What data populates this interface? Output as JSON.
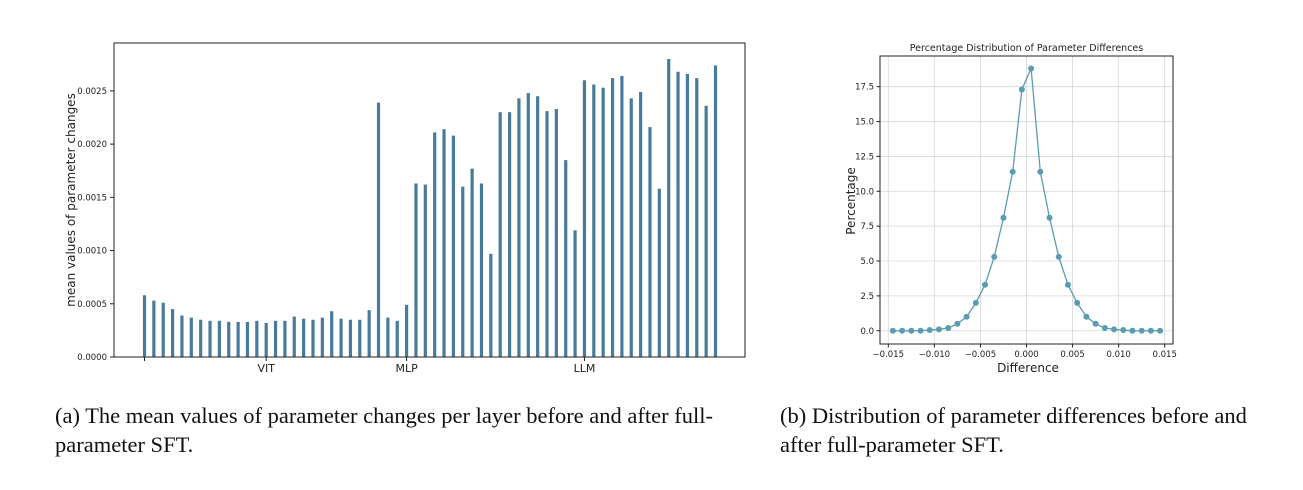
{
  "captions": {
    "a": "(a) The mean values of parameter changes per layer before and after full-parameter SFT.",
    "b": "(b) Distribution of parameter differences before and after full-parameter SFT."
  },
  "colors": {
    "bar": "#4a7a9b",
    "line": "#5b9cb0"
  },
  "chart_data": [
    {
      "type": "bar",
      "title": "",
      "xlabel": "",
      "ylabel": "mean values of parameter changes",
      "ylim": [
        0,
        0.00295
      ],
      "yticks": [
        0.0,
        0.0005,
        0.001,
        0.0015,
        0.002,
        0.0025
      ],
      "ytick_labels": [
        "0.0000",
        "0.0005",
        "0.0010",
        "0.0015",
        "0.0020",
        "0.0025"
      ],
      "group_labels": [
        {
          "label": "VIT",
          "at_index": 13
        },
        {
          "label": "MLP",
          "at_index": 28
        },
        {
          "label": "LLM",
          "at_index": 47
        }
      ],
      "grid": false,
      "values": [
        0.00058,
        0.00053,
        0.00051,
        0.00045,
        0.00039,
        0.00037,
        0.00035,
        0.00034,
        0.00034,
        0.00033,
        0.00033,
        0.00033,
        0.00034,
        0.00032,
        0.00034,
        0.00034,
        0.00038,
        0.00036,
        0.00035,
        0.00037,
        0.00043,
        0.00036,
        0.00035,
        0.00035,
        0.00044,
        0.00239,
        0.00037,
        0.00034,
        0.00049,
        0.00163,
        0.00162,
        0.00211,
        0.00214,
        0.00208,
        0.0016,
        0.00177,
        0.00163,
        0.00097,
        0.0023,
        0.0023,
        0.00243,
        0.00248,
        0.00245,
        0.00231,
        0.00233,
        0.00185,
        0.00119,
        0.0026,
        0.00256,
        0.00253,
        0.00262,
        0.00264,
        0.00243,
        0.00249,
        0.00216,
        0.00158,
        0.0028,
        0.00268,
        0.00266,
        0.00262,
        0.00236,
        0.00274
      ]
    },
    {
      "type": "line",
      "title": "Percentage Distribution of Parameter Differences",
      "xlabel": "Difference",
      "ylabel": "Percentage",
      "xlim": [
        -0.0159,
        0.0159
      ],
      "ylim": [
        -0.95,
        19.7
      ],
      "xticks": [
        -0.015,
        -0.01,
        -0.005,
        0.0,
        0.005,
        0.01,
        0.015
      ],
      "xtick_labels": [
        "−0.015",
        "−0.010",
        "−0.005",
        "0.000",
        "0.005",
        "0.010",
        "0.015"
      ],
      "yticks": [
        0.0,
        2.5,
        5.0,
        7.5,
        10.0,
        12.5,
        15.0,
        17.5
      ],
      "ytick_labels": [
        "0.0",
        "2.5",
        "5.0",
        "7.5",
        "10.0",
        "12.5",
        "15.0",
        "17.5"
      ],
      "grid": true,
      "markers": true,
      "x": [
        -0.0145,
        -0.0135,
        -0.0125,
        -0.0115,
        -0.0105,
        -0.0095,
        -0.0085,
        -0.0075,
        -0.0065,
        -0.0055,
        -0.0045,
        -0.0035,
        -0.0025,
        -0.0015,
        -0.0005,
        0.0005,
        0.0015,
        0.0025,
        0.0035,
        0.0045,
        0.0055,
        0.0065,
        0.0075,
        0.0085,
        0.0095,
        0.0105,
        0.0115,
        0.0125,
        0.0135,
        0.0145
      ],
      "y": [
        0.0,
        0.0,
        0.0,
        0.0,
        0.05,
        0.1,
        0.2,
        0.5,
        1.0,
        2.0,
        3.3,
        5.3,
        8.1,
        11.4,
        17.3,
        18.8,
        11.4,
        8.1,
        5.3,
        3.3,
        2.0,
        1.0,
        0.5,
        0.2,
        0.1,
        0.05,
        0.0,
        0.0,
        0.0,
        0.0
      ]
    }
  ]
}
